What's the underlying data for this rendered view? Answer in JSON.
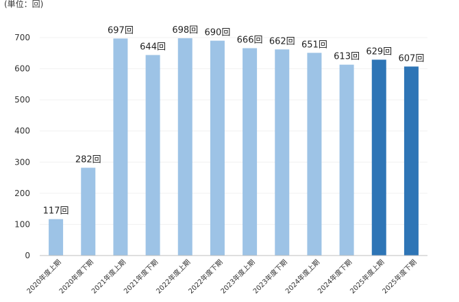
{
  "unit_note": "(単位：回)",
  "chart_data": {
    "type": "bar",
    "title": "",
    "xlabel": "",
    "ylabel": "",
    "ylim": [
      0,
      700
    ],
    "yticks": [
      0,
      100,
      200,
      300,
      400,
      500,
      600,
      700
    ],
    "grid": true,
    "value_suffix": "回",
    "categories": [
      "2020年度上期",
      "2020年度下期",
      "2021年度上期",
      "2021年度下期",
      "2022年度上期",
      "2022年度下期",
      "2023年度上期",
      "2023年度下期",
      "2024年度上期",
      "2024年度下期",
      "2025年度上期",
      "2025年度下期"
    ],
    "values": [
      117,
      282,
      697,
      644,
      698,
      690,
      666,
      662,
      651,
      613,
      629,
      607
    ],
    "colors": {
      "default": "#9dc3e6",
      "highlight": "#2e75b6",
      "highlight_categories": [
        "2025年度上期",
        "2025年度下期"
      ],
      "grid": "#f0f0f0",
      "axis": "#bfbfbf"
    }
  }
}
